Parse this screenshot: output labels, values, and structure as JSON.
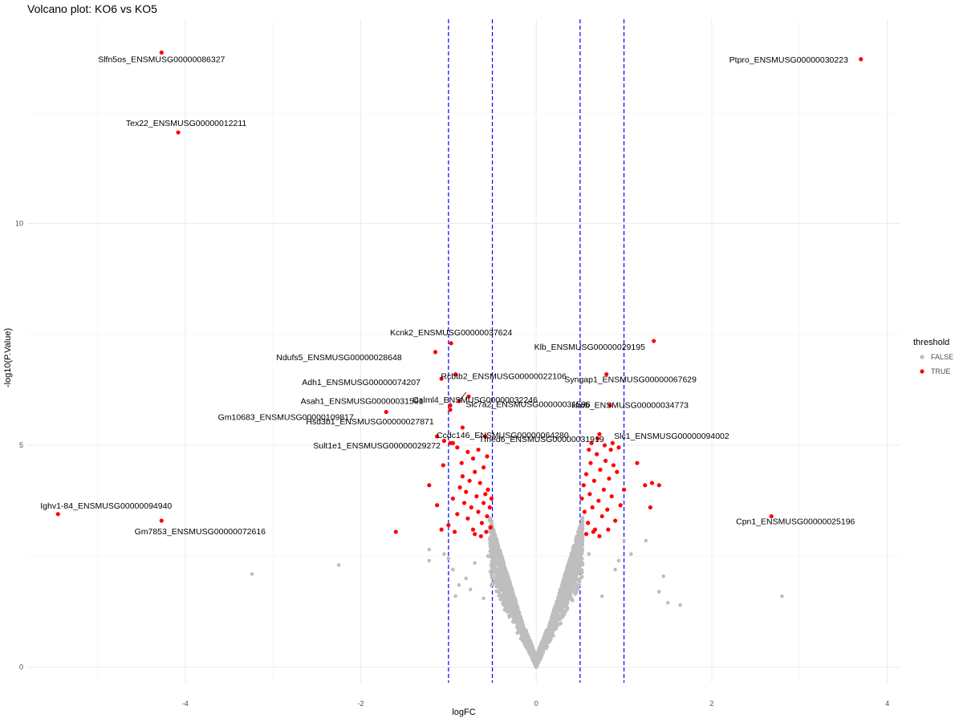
{
  "chart_data": {
    "type": "scatter",
    "title": "Volcano plot: KO6 vs KO5",
    "xlabel": "logFC",
    "ylabel": "-log10(P.Value)",
    "xlim": [
      -5.8,
      4.15
    ],
    "ylim": [
      -0.35,
      14.6
    ],
    "x_ticks": [
      -4,
      -2,
      0,
      2,
      4
    ],
    "y_ticks": [
      0,
      5,
      10
    ],
    "grid": true,
    "vlines": [
      -1,
      -0.5,
      0.5,
      1
    ],
    "vline_color": "#0000ff",
    "legend": {
      "title": "threshold",
      "position": "right",
      "entries": [
        {
          "label": "FALSE",
          "color": "#bebebe"
        },
        {
          "label": "TRUE",
          "color": "#ff0000"
        }
      ]
    },
    "labeled_points": [
      {
        "label": "Slfn5os_ENSMUSG00000086327",
        "x": -4.27,
        "y": 13.85
      },
      {
        "label": "Ptpro_ENSMUSG00000030223",
        "x": 3.7,
        "y": 13.7
      },
      {
        "label": "Tex22_ENSMUSG00000012211",
        "x": -4.08,
        "y": 12.05
      },
      {
        "label": "Kcnk2_ENSMUSG00000037624",
        "x": -0.97,
        "y": 7.3
      },
      {
        "label": "Klb_ENSMUSG00000029195",
        "x": 1.34,
        "y": 7.35
      },
      {
        "label": "Ndufs5_ENSMUSG00000028648",
        "x": -1.15,
        "y": 7.1
      },
      {
        "label": "Rcbtb2_ENSMUSG00000022106",
        "x": -0.92,
        "y": 6.6
      },
      {
        "label": "Syngap1_ENSMUSG00000067629",
        "x": 0.8,
        "y": 6.6
      },
      {
        "label": "Adh1_ENSMUSG00000074207",
        "x": -1.08,
        "y": 6.5
      },
      {
        "label": "Calml4_ENSMUSG00000032246",
        "x": -0.77,
        "y": 6.1
      },
      {
        "label": "Hrob_ENSMUSG00000034773",
        "x": 0.84,
        "y": 5.9
      },
      {
        "label": "Asah1_ENSMUSG00000031591",
        "x": -0.98,
        "y": 5.9
      },
      {
        "label": "Slc7a2_ENSMUSG00000031596",
        "x": -0.88,
        "y": 6.0
      },
      {
        "label": "Gm10683_ENSMUSG00000109817",
        "x": -1.71,
        "y": 5.75
      },
      {
        "label": "Hsd3b1_ENSMUSG00000027871",
        "x": -0.98,
        "y": 5.8
      },
      {
        "label": "Ccdc146_ENSMUSG00000064280",
        "x": -0.84,
        "y": 5.4
      },
      {
        "label": "Tmed6_ENSMUSG00000031919",
        "x": -0.58,
        "y": 5.2
      },
      {
        "label": "Slc1_ENSMUSG00000094002",
        "x": 0.72,
        "y": 5.25
      },
      {
        "label": "Sult1e1_ENSMUSG00000029272",
        "x": -1.13,
        "y": 5.2
      },
      {
        "label": "Ighv1-84_ENSMUSG00000094940",
        "x": -5.45,
        "y": 3.45
      },
      {
        "label": "Gm7853_ENSMUSG00000072616",
        "x": -4.27,
        "y": 3.3
      },
      {
        "label": "Cpn1_ENSMUSG00000025196",
        "x": 2.68,
        "y": 3.4
      }
    ],
    "other_sig_points": [
      [
        -1.22,
        4.1
      ],
      [
        -1.13,
        3.65
      ],
      [
        -1.06,
        4.55
      ],
      [
        -1.0,
        3.2
      ],
      [
        -0.95,
        3.8
      ],
      [
        -0.9,
        3.45
      ],
      [
        -0.87,
        4.05
      ],
      [
        -0.84,
        4.3
      ],
      [
        -0.82,
        3.7
      ],
      [
        -0.8,
        3.95
      ],
      [
        -0.78,
        3.35
      ],
      [
        -0.76,
        4.2
      ],
      [
        -0.74,
        3.6
      ],
      [
        -0.72,
        3.1
      ],
      [
        -0.7,
        4.4
      ],
      [
        -0.68,
        3.85
      ],
      [
        -0.66,
        3.5
      ],
      [
        -0.64,
        4.15
      ],
      [
        -0.62,
        3.25
      ],
      [
        -0.6,
        3.7
      ],
      [
        -0.58,
        3.9
      ],
      [
        -0.56,
        3.4
      ],
      [
        -0.55,
        4.0
      ],
      [
        -0.53,
        3.6
      ],
      [
        -0.52,
        3.15
      ],
      [
        -0.51,
        3.8
      ],
      [
        -0.72,
        4.7
      ],
      [
        -0.66,
        4.9
      ],
      [
        -0.6,
        4.5
      ],
      [
        -0.56,
        4.75
      ],
      [
        -0.78,
        4.85
      ],
      [
        -0.9,
        4.95
      ],
      [
        -1.05,
        5.1
      ],
      [
        -0.95,
        5.05
      ],
      [
        -0.85,
        4.6
      ],
      [
        -0.7,
        3.0
      ],
      [
        -0.63,
        2.95
      ],
      [
        -0.57,
        3.05
      ],
      [
        -0.93,
        3.05
      ],
      [
        -1.6,
        3.05
      ],
      [
        -1.08,
        3.1
      ],
      [
        -0.98,
        5.05
      ],
      [
        0.52,
        3.8
      ],
      [
        0.54,
        4.1
      ],
      [
        0.55,
        3.5
      ],
      [
        0.57,
        4.35
      ],
      [
        0.59,
        3.25
      ],
      [
        0.61,
        3.9
      ],
      [
        0.62,
        4.6
      ],
      [
        0.64,
        3.6
      ],
      [
        0.66,
        4.2
      ],
      [
        0.67,
        3.1
      ],
      [
        0.69,
        4.8
      ],
      [
        0.71,
        3.75
      ],
      [
        0.73,
        4.45
      ],
      [
        0.75,
        3.4
      ],
      [
        0.77,
        4.0
      ],
      [
        0.79,
        4.65
      ],
      [
        0.81,
        3.55
      ],
      [
        0.83,
        4.25
      ],
      [
        0.86,
        3.85
      ],
      [
        0.88,
        4.55
      ],
      [
        0.9,
        3.3
      ],
      [
        0.92,
        4.4
      ],
      [
        0.85,
        4.9
      ],
      [
        0.78,
        5.0
      ],
      [
        0.7,
        5.15
      ],
      [
        0.63,
        5.05
      ],
      [
        0.6,
        4.9
      ],
      [
        0.57,
        3.0
      ],
      [
        0.65,
        3.05
      ],
      [
        0.82,
        3.1
      ],
      [
        0.72,
        2.95
      ],
      [
        0.96,
        3.65
      ],
      [
        1.15,
        4.6
      ],
      [
        1.24,
        4.1
      ],
      [
        1.32,
        4.15
      ],
      [
        1.4,
        4.1
      ],
      [
        1.3,
        3.6
      ],
      [
        0.87,
        5.05
      ],
      [
        1.0,
        4.0
      ],
      [
        0.94,
        4.95
      ]
    ],
    "other_nonsig_points": [
      [
        -3.24,
        2.1
      ],
      [
        -2.25,
        2.3
      ],
      [
        -1.22,
        2.65
      ],
      [
        -1.22,
        2.4
      ],
      [
        -1.05,
        2.55
      ],
      [
        -0.95,
        2.2
      ],
      [
        -0.88,
        1.85
      ],
      [
        -0.92,
        1.6
      ],
      [
        -0.8,
        2.0
      ],
      [
        -1.0,
        2.45
      ],
      [
        -0.75,
        1.75
      ],
      [
        -0.7,
        2.35
      ],
      [
        1.0,
        2.85
      ],
      [
        1.08,
        2.55
      ],
      [
        0.94,
        2.4
      ],
      [
        1.25,
        2.85
      ],
      [
        1.45,
        2.05
      ],
      [
        1.5,
        1.45
      ],
      [
        1.64,
        1.4
      ],
      [
        2.8,
        1.6
      ],
      [
        1.4,
        1.7
      ],
      [
        0.9,
        2.2
      ],
      [
        0.75,
        1.6
      ],
      [
        -0.6,
        1.55
      ],
      [
        -0.55,
        2.5
      ],
      [
        0.6,
        2.55
      ]
    ]
  }
}
